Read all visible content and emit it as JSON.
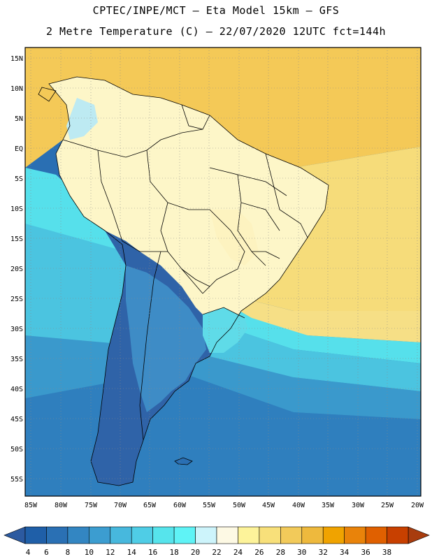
{
  "title": {
    "line1": "CPTEC/INPE/MCT –  Eta Model 15km – GFS",
    "line2": "2 Metre Temperature (C) – 22/07/2020 12UTC fct=144h"
  },
  "axes": {
    "lat_labels": [
      "15N",
      "10N",
      "5N",
      "EQ",
      "5S",
      "10S",
      "15S",
      "20S",
      "25S",
      "30S",
      "35S",
      "40S",
      "45S",
      "50S",
      "55S"
    ],
    "lon_labels": [
      "85W",
      "80W",
      "75W",
      "70W",
      "65W",
      "60W",
      "55W",
      "50W",
      "45W",
      "40W",
      "35W",
      "30W",
      "25W",
      "20W"
    ]
  },
  "legend": {
    "labels": [
      "4",
      "6",
      "8",
      "10",
      "12",
      "14",
      "16",
      "18",
      "20",
      "22",
      "24",
      "26",
      "28",
      "30",
      "32",
      "34",
      "36",
      "38"
    ],
    "colors": [
      "#1f5fa8",
      "#2a70b4",
      "#3386c2",
      "#3c9dd0",
      "#47b8dd",
      "#4fcde6",
      "#56e4ec",
      "#5ff3f6",
      "#cdf4fb",
      "#fdf9e4",
      "#fdf39a",
      "#f8e07a",
      "#f2ca5a",
      "#eeb93d",
      "#f0a300",
      "#e9830a",
      "#e06000",
      "#c84000"
    ],
    "under_color": "#2c5aa0",
    "over_color": "#a83c0e"
  }
}
